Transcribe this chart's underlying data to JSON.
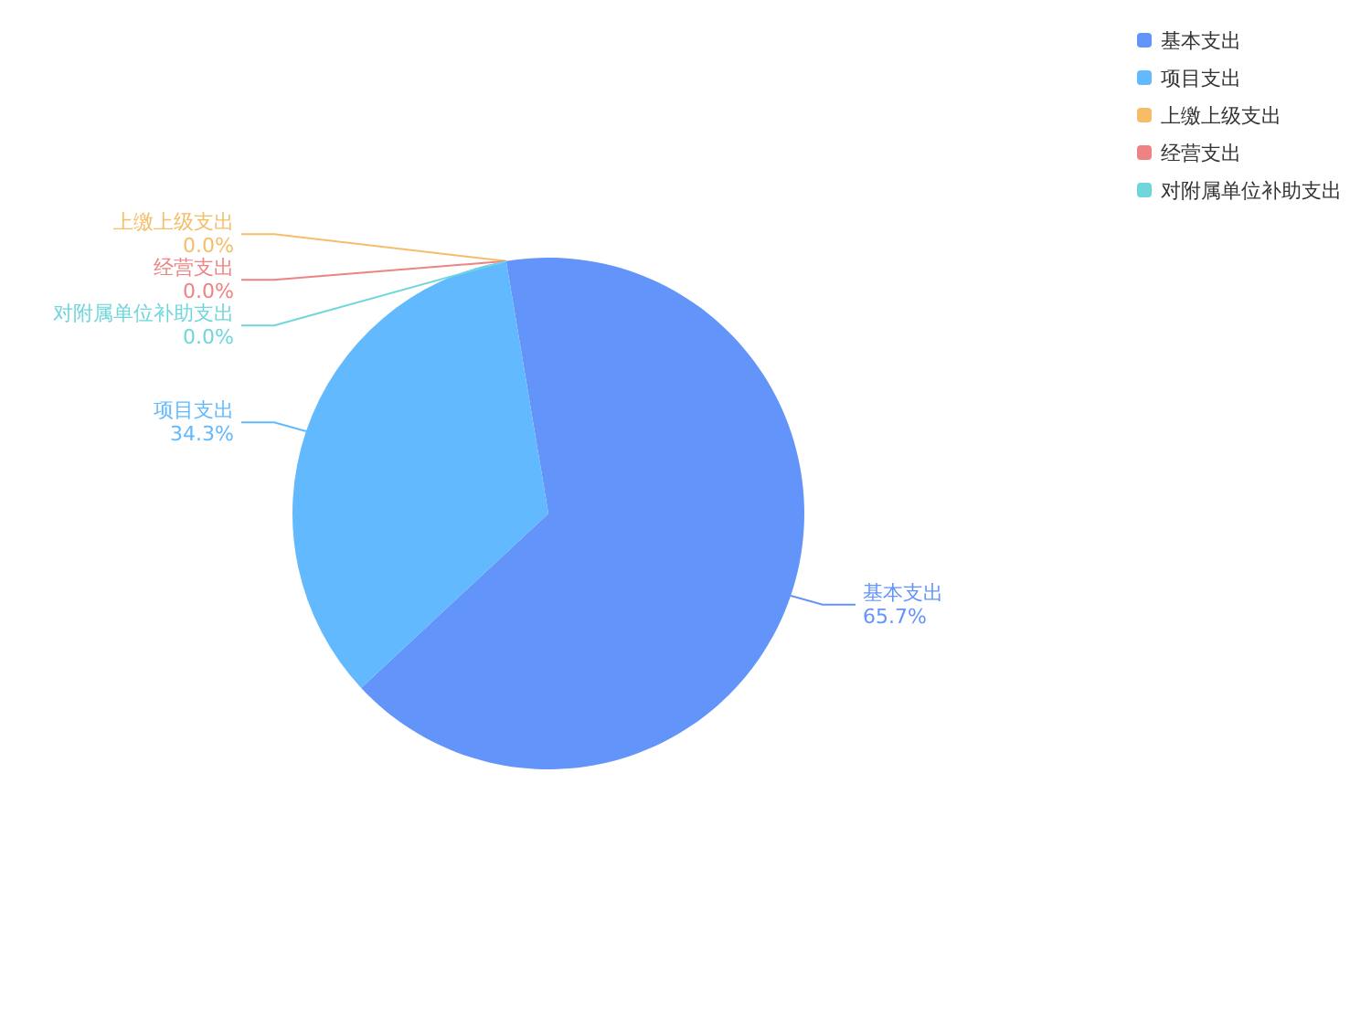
{
  "chart_data": {
    "type": "pie",
    "categories": [
      "基本支出",
      "项目支出",
      "上缴上级支出",
      "经营支出",
      "对附属单位补助支出"
    ],
    "values": [
      65.7,
      34.3,
      0.0,
      0.0,
      0.0
    ],
    "value_labels": [
      "65.7%",
      "34.3%",
      "0.0%",
      "0.0%",
      "0.0%"
    ],
    "colors": [
      "#6394f9",
      "#62b9fd",
      "#f6bd68",
      "#ef8383",
      "#6fd6dc"
    ],
    "legend": "top right"
  }
}
